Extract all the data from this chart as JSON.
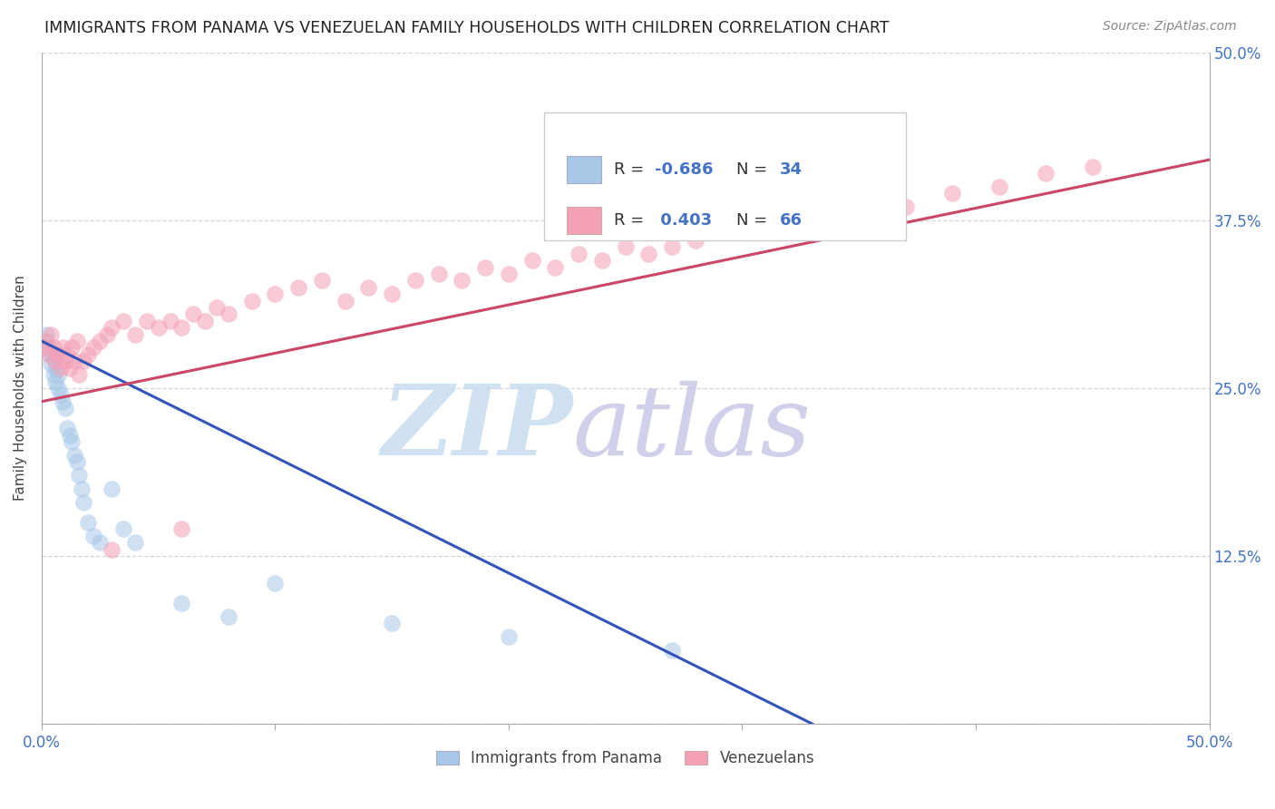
{
  "title": "IMMIGRANTS FROM PANAMA VS VENEZUELAN FAMILY HOUSEHOLDS WITH CHILDREN CORRELATION CHART",
  "source": "Source: ZipAtlas.com",
  "ylabel": "Family Households with Children",
  "legend_label_blue": "Immigrants from Panama",
  "legend_label_pink": "Venezuelans",
  "legend_r_blue": "R = -0.686",
  "legend_n_blue": "N = 34",
  "legend_r_pink": "R =  0.403",
  "legend_n_pink": "N = 66",
  "xlim": [
    0.0,
    0.5
  ],
  "ylim": [
    0.0,
    0.5
  ],
  "background_color": "#ffffff",
  "grid_color": "#cccccc",
  "blue_scatter_color": "#a8c8e8",
  "pink_scatter_color": "#f4a0b5",
  "blue_line_color": "#3355bb",
  "pink_line_color": "#cc4466",
  "watermark_zip_color": "#d8e8f4",
  "watermark_atlas_color": "#d8d8ee",
  "panama_x": [
    0.001,
    0.002,
    0.003,
    0.004,
    0.004,
    0.005,
    0.005,
    0.006,
    0.006,
    0.007,
    0.007,
    0.008,
    0.009,
    0.01,
    0.011,
    0.012,
    0.013,
    0.014,
    0.015,
    0.016,
    0.017,
    0.018,
    0.02,
    0.022,
    0.025,
    0.03,
    0.035,
    0.04,
    0.06,
    0.08,
    0.1,
    0.15,
    0.2,
    0.27
  ],
  "panama_y": [
    0.285,
    0.29,
    0.28,
    0.275,
    0.268,
    0.272,
    0.26,
    0.265,
    0.255,
    0.26,
    0.25,
    0.245,
    0.24,
    0.235,
    0.22,
    0.215,
    0.21,
    0.2,
    0.195,
    0.185,
    0.175,
    0.165,
    0.15,
    0.14,
    0.135,
    0.175,
    0.145,
    0.135,
    0.09,
    0.08,
    0.105,
    0.075,
    0.065,
    0.055
  ],
  "venezuelan_x": [
    0.001,
    0.002,
    0.003,
    0.004,
    0.005,
    0.006,
    0.007,
    0.008,
    0.009,
    0.01,
    0.011,
    0.012,
    0.013,
    0.014,
    0.015,
    0.016,
    0.018,
    0.02,
    0.022,
    0.025,
    0.028,
    0.03,
    0.035,
    0.04,
    0.045,
    0.05,
    0.055,
    0.06,
    0.065,
    0.07,
    0.075,
    0.08,
    0.09,
    0.1,
    0.11,
    0.12,
    0.13,
    0.14,
    0.15,
    0.16,
    0.17,
    0.18,
    0.19,
    0.2,
    0.21,
    0.22,
    0.23,
    0.24,
    0.25,
    0.26,
    0.27,
    0.28,
    0.29,
    0.3,
    0.31,
    0.32,
    0.33,
    0.34,
    0.35,
    0.37,
    0.39,
    0.41,
    0.43,
    0.45,
    0.03,
    0.06
  ],
  "venezuelan_y": [
    0.28,
    0.285,
    0.275,
    0.29,
    0.28,
    0.27,
    0.275,
    0.265,
    0.28,
    0.27,
    0.275,
    0.265,
    0.28,
    0.27,
    0.285,
    0.26,
    0.27,
    0.275,
    0.28,
    0.285,
    0.29,
    0.295,
    0.3,
    0.29,
    0.3,
    0.295,
    0.3,
    0.295,
    0.305,
    0.3,
    0.31,
    0.305,
    0.315,
    0.32,
    0.325,
    0.33,
    0.315,
    0.325,
    0.32,
    0.33,
    0.335,
    0.33,
    0.34,
    0.335,
    0.345,
    0.34,
    0.35,
    0.345,
    0.355,
    0.35,
    0.355,
    0.36,
    0.37,
    0.37,
    0.375,
    0.375,
    0.38,
    0.385,
    0.39,
    0.385,
    0.395,
    0.4,
    0.41,
    0.415,
    0.13,
    0.145
  ],
  "blue_line_x0": 0.0,
  "blue_line_y0": 0.285,
  "blue_line_x1": 0.33,
  "blue_line_y1": 0.0,
  "pink_line_x0": 0.0,
  "pink_line_y0": 0.24,
  "pink_line_x1": 0.5,
  "pink_line_y1": 0.42
}
